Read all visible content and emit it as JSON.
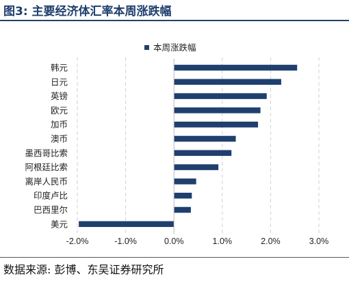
{
  "figure": {
    "title": "图3:  主要经济体汇率本周涨跌幅",
    "source": "数据来源:  彭博、东吴证券研究所"
  },
  "colors": {
    "bar": "#1f3f6e",
    "grid": "#cfcfcf",
    "title": "#1f3f6e"
  },
  "chart_data": {
    "type": "bar",
    "orientation": "horizontal",
    "categories": [
      "韩元",
      "日元",
      "英镑",
      "欧元",
      "加币",
      "澳币",
      "墨西哥比索",
      "阿根廷比索",
      "离岸人民币",
      "印度卢比",
      "巴西里尔",
      "美元"
    ],
    "series": [
      {
        "name": "本周涨跌幅",
        "values": [
          2.55,
          2.22,
          1.92,
          1.79,
          1.74,
          1.28,
          1.19,
          0.92,
          0.46,
          0.37,
          0.35,
          -1.97
        ]
      }
    ],
    "xlim": [
      -2.0,
      3.0
    ],
    "xticks": [
      -2.0,
      -1.0,
      0.0,
      1.0,
      2.0,
      3.0
    ],
    "xtick_labels": [
      "-2.0%",
      "-1.0%",
      "0.0%",
      "1.0%",
      "2.0%",
      "3.0%"
    ],
    "grid": "vertical dashed",
    "legend": "top-center"
  }
}
